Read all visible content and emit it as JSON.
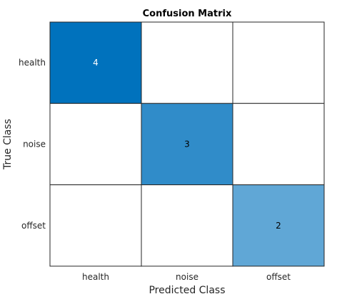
{
  "chart_data": {
    "type": "heatmap",
    "title": "Confusion Matrix",
    "xlabel": "Predicted Class",
    "ylabel": "True Class",
    "x_categories": [
      "health",
      "noise",
      "offset"
    ],
    "y_categories": [
      "health",
      "noise",
      "offset"
    ],
    "values": [
      [
        4,
        0,
        0
      ],
      [
        0,
        3,
        0
      ],
      [
        0,
        0,
        2
      ]
    ],
    "show_zero_labels": false,
    "colors": {
      "high": "#0072bd",
      "low": "#ffffff",
      "max_value": 4,
      "grid": "#262626",
      "label_dark": "#000000",
      "label_light": "#ffffff"
    }
  }
}
